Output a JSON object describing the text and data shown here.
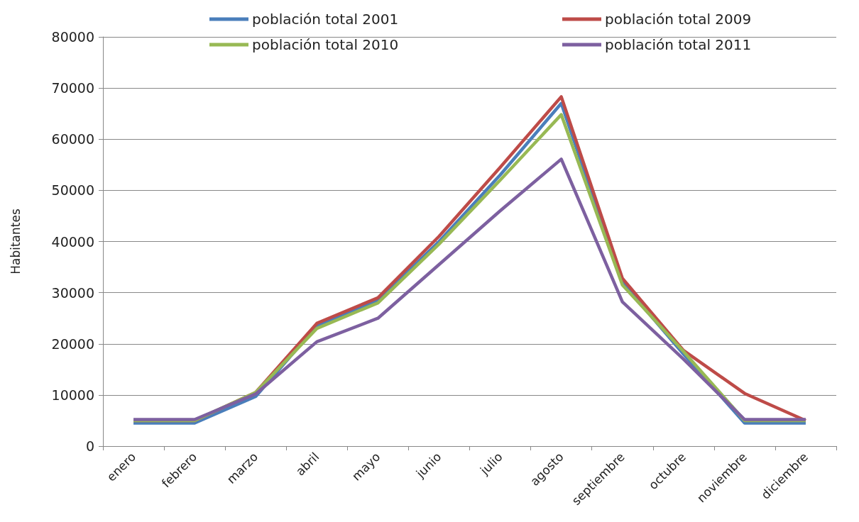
{
  "chart_data": {
    "type": "line",
    "ylabel": "Habitantes",
    "categories": [
      "enero",
      "febrero",
      "marzo",
      "abril",
      "mayo",
      "junio",
      "julio",
      "agosto",
      "septiembre",
      "octubre",
      "noviembre",
      "diciembre"
    ],
    "series": [
      {
        "name": "población total 2001",
        "color": "#4a7ebb",
        "values": [
          4500,
          4500,
          9700,
          23500,
          28500,
          40000,
          53000,
          67000,
          32000,
          18000,
          4500,
          4500
        ]
      },
      {
        "name": "población total 2009",
        "color": "#be4b48",
        "values": [
          5000,
          5000,
          10500,
          24000,
          29000,
          41000,
          54500,
          68300,
          32800,
          18700,
          10300,
          5000
        ]
      },
      {
        "name": "población total 2010",
        "color": "#98b954",
        "values": [
          5000,
          5000,
          10500,
          23000,
          28000,
          39500,
          52000,
          64800,
          31500,
          18500,
          5000,
          5000
        ]
      },
      {
        "name": "población total 2011",
        "color": "#7d60a0",
        "values": [
          5200,
          5200,
          10200,
          20400,
          25000,
          35500,
          46000,
          56100,
          28200,
          17000,
          5200,
          5200
        ]
      }
    ],
    "ylim": [
      0,
      80000
    ],
    "yticks": [
      0,
      10000,
      20000,
      30000,
      40000,
      50000,
      60000,
      70000,
      80000
    ],
    "grid": "y",
    "legend": "top",
    "marker": "none",
    "line_style": "solid"
  }
}
